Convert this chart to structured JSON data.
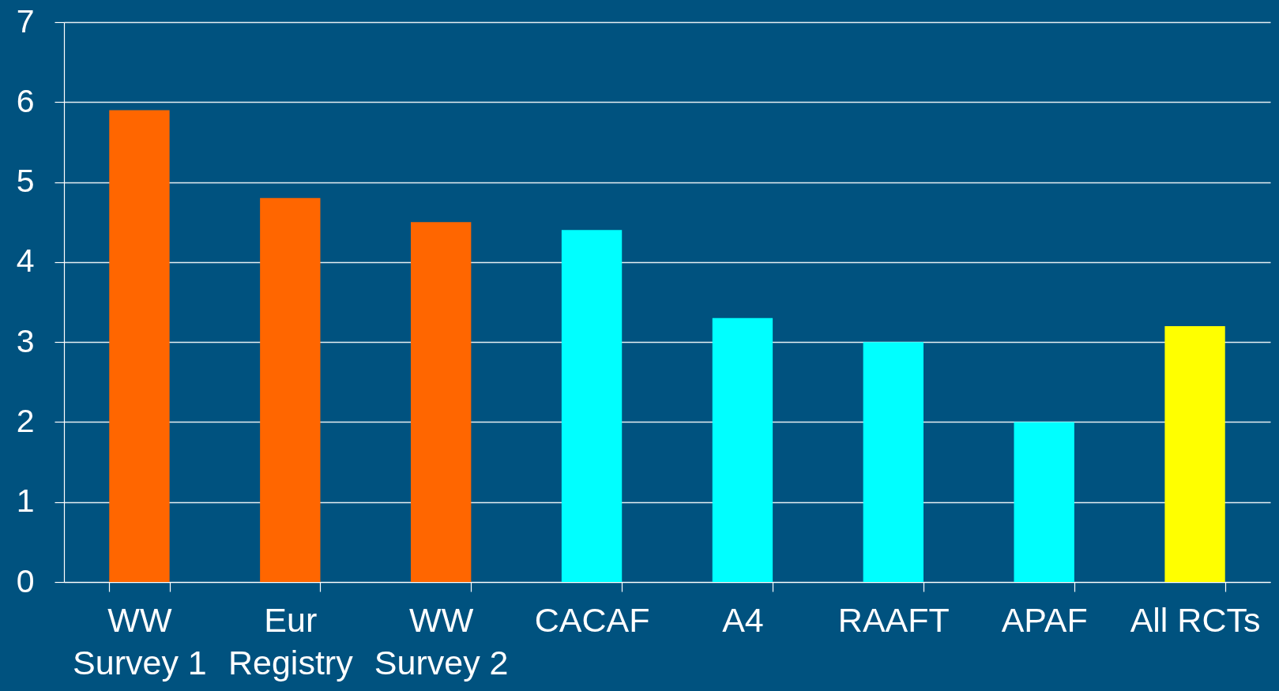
{
  "chart_data": {
    "type": "bar",
    "categories": [
      "WW\nSurvey 1",
      "Eur\nRegistry",
      "WW\nSurvey 2",
      "CACAF",
      "A4",
      "RAAFT",
      "APAF",
      "All RCTs"
    ],
    "values": [
      5.9,
      4.8,
      4.5,
      4.4,
      3.3,
      3.0,
      2.0,
      3.2
    ],
    "colors": [
      "#ff6600",
      "#ff6600",
      "#ff6600",
      "#00ffff",
      "#00ffff",
      "#00ffff",
      "#00ffff",
      "#ffff00"
    ],
    "ylim": [
      0,
      7
    ],
    "yticks": [
      0,
      1,
      2,
      3,
      4,
      5,
      6,
      7
    ],
    "grid": "y"
  }
}
